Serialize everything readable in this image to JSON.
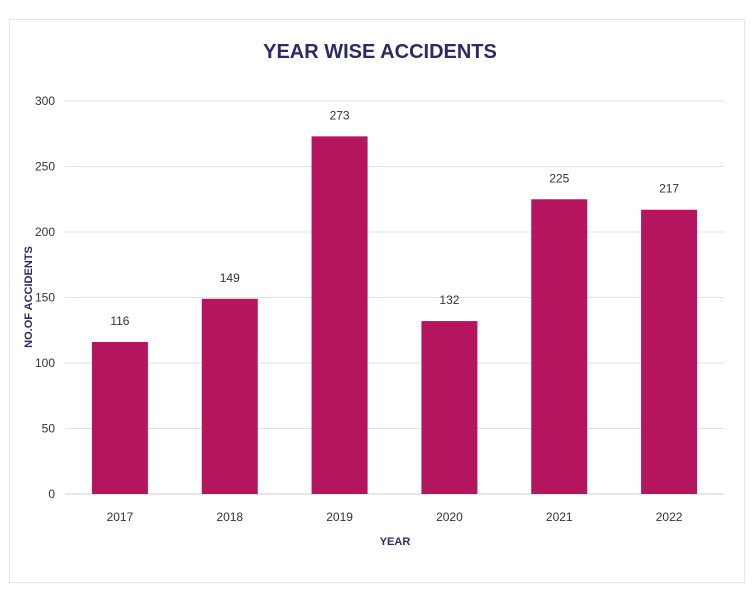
{
  "chart_data": {
    "type": "bar",
    "title": "YEAR WISE ACCIDENTS",
    "xlabel": "YEAR",
    "ylabel": "NO.OF ACCIDENTS",
    "categories": [
      "2017",
      "2018",
      "2019",
      "2020",
      "2021",
      "2022"
    ],
    "values": [
      116,
      149,
      273,
      132,
      225,
      217
    ],
    "ylim": [
      0,
      300
    ],
    "yticks": [
      0,
      50,
      100,
      150,
      200,
      250,
      300
    ],
    "grid": true,
    "data_labels": true,
    "bar_color": "#b5145f"
  }
}
